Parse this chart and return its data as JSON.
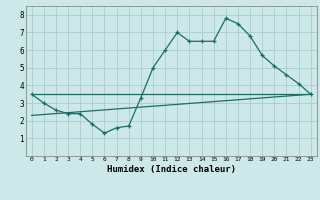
{
  "xlabel": "Humidex (Indice chaleur)",
  "bg_color": "#cce8e8",
  "grid_color": "#aacccc",
  "line_color": "#1e6b6b",
  "line1_x": [
    0,
    1,
    2,
    3,
    4,
    5,
    6,
    7,
    8,
    9,
    10,
    11,
    12,
    13,
    14,
    15,
    16,
    17,
    18,
    19,
    20,
    21,
    22,
    23
  ],
  "line1_y": [
    3.5,
    3.0,
    2.6,
    2.4,
    2.4,
    1.8,
    1.3,
    1.6,
    1.7,
    3.3,
    5.0,
    6.0,
    7.0,
    6.5,
    6.5,
    6.5,
    7.8,
    7.5,
    6.8,
    5.7,
    5.1,
    4.6,
    4.1,
    3.5
  ],
  "line2_x": [
    0,
    23
  ],
  "line2_y": [
    3.5,
    3.5
  ],
  "line3_x": [
    0,
    23
  ],
  "line3_y": [
    2.3,
    3.5
  ],
  "xlim": [
    -0.5,
    23.5
  ],
  "ylim": [
    0,
    8.5
  ],
  "xticks": [
    0,
    1,
    2,
    3,
    4,
    5,
    6,
    7,
    8,
    9,
    10,
    11,
    12,
    13,
    14,
    15,
    16,
    17,
    18,
    19,
    20,
    21,
    22,
    23
  ],
  "yticks": [
    1,
    2,
    3,
    4,
    5,
    6,
    7,
    8
  ]
}
